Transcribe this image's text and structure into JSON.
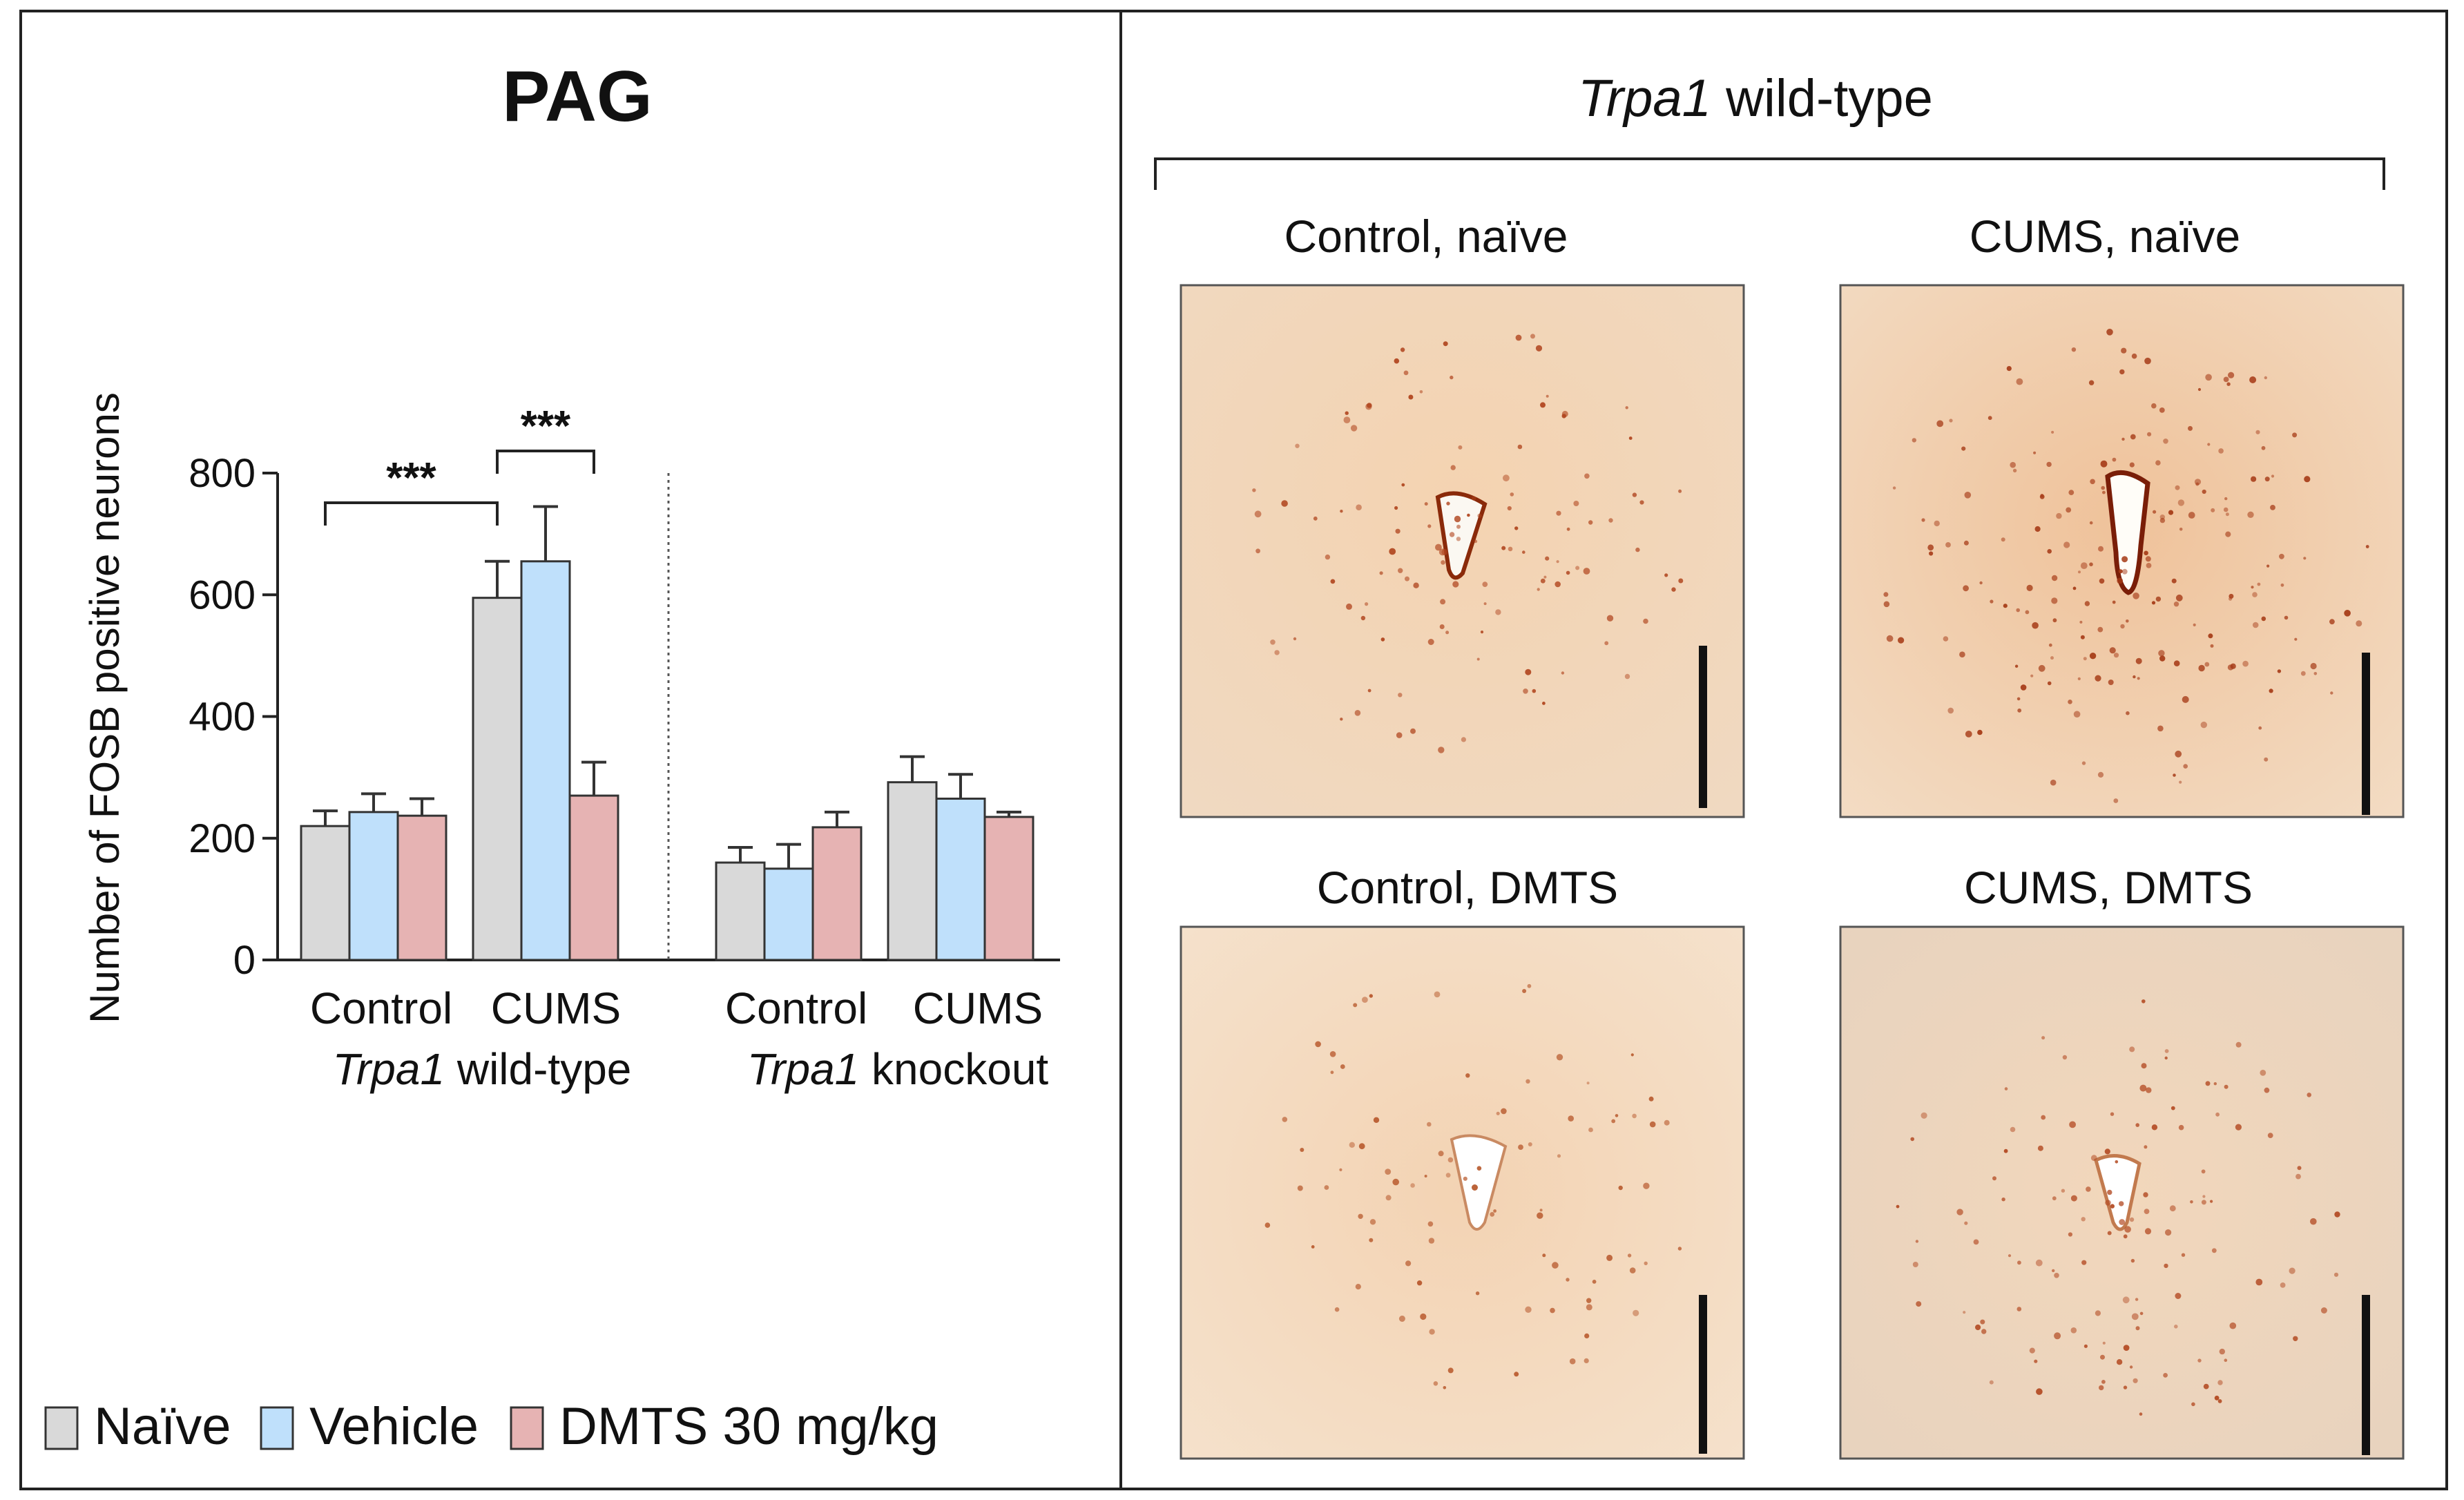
{
  "chart_data": {
    "type": "bar",
    "title": "PAG",
    "ylabel": "Number of FOSB positive neurons",
    "ylim": [
      0,
      800
    ],
    "yticks": [
      0,
      200,
      400,
      600,
      800
    ],
    "grid": false,
    "legend_position": "bottom-left",
    "groups": [
      {
        "genotype_italic": "Trpa1",
        "genotype_rest": " wild-type",
        "categories": [
          "Control",
          "CUMS"
        ]
      },
      {
        "genotype_italic": "Trpa1",
        "genotype_rest": " knockout",
        "categories": [
          "Control",
          "CUMS"
        ]
      }
    ],
    "series": [
      {
        "name": "Naïve",
        "color": "#d9d9d9",
        "values": [
          220,
          595,
          160,
          292
        ],
        "errors": [
          25,
          60,
          25,
          42
        ]
      },
      {
        "name": "Vehicle",
        "color": "#bfe0fb",
        "values": [
          243,
          655,
          150,
          265
        ],
        "errors": [
          30,
          90,
          40,
          40
        ]
      },
      {
        "name": "DMTS 30 mg/kg",
        "color": "#e6b3b3",
        "values": [
          237,
          270,
          218,
          235
        ],
        "errors": [
          28,
          55,
          25,
          8
        ]
      }
    ],
    "annotations": [
      {
        "text": "***",
        "from": {
          "group": 0,
          "category": 0,
          "series": 0
        },
        "to": {
          "group": 0,
          "category": 1,
          "series": 0
        }
      },
      {
        "text": "***",
        "from": {
          "group": 0,
          "category": 1,
          "series": 0
        },
        "to": {
          "group": 0,
          "category": 1,
          "series": 2
        }
      }
    ]
  },
  "micrographs": {
    "heading_italic": "Trpa1",
    "heading_rest": " wild-type",
    "panels": [
      {
        "label": "Control, naïve",
        "icon": "micrograph-image",
        "scale_bar": true
      },
      {
        "label": "CUMS, naïve",
        "icon": "micrograph-image",
        "scale_bar": true
      },
      {
        "label": "Control, DMTS",
        "icon": "micrograph-image",
        "scale_bar": true
      },
      {
        "label": "CUMS, DMTS",
        "icon": "micrograph-image",
        "scale_bar": true
      }
    ]
  }
}
